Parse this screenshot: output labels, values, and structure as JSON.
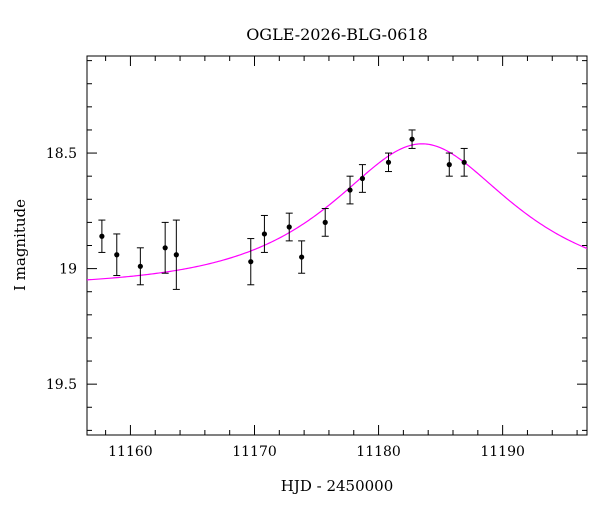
{
  "chart_data": {
    "type": "scatter",
    "title": "OGLE-2026-BLG-0618",
    "xlabel": "HJD - 2450000",
    "ylabel": "I magnitude",
    "xlim": [
      11156.5,
      11196.8
    ],
    "ylim": [
      19.72,
      18.08
    ],
    "y_inverted": true,
    "grid": false,
    "x_major_ticks": [
      11160,
      11170,
      11180,
      11190
    ],
    "x_tick_labels": [
      "11160",
      "11170",
      "11180",
      "11190"
    ],
    "y_major_ticks": [
      18.5,
      19,
      19.5
    ],
    "y_tick_labels": [
      "18.5",
      "19",
      "19.5"
    ],
    "colors": {
      "data": "#000000",
      "model": "#ff00ff",
      "frame": "#000000"
    },
    "series": [
      {
        "kind": "points_with_errorbars",
        "x": [
          11157.7,
          11158.9,
          11160.8,
          11162.8,
          11163.7,
          11169.7,
          11170.8,
          11172.8,
          11173.8,
          11175.7,
          11177.7,
          11178.7,
          11180.8,
          11182.7,
          11185.7,
          11186.9
        ],
        "y": [
          18.86,
          18.94,
          18.99,
          18.91,
          18.94,
          18.97,
          18.85,
          18.82,
          18.95,
          18.8,
          18.66,
          18.61,
          18.54,
          18.44,
          18.55,
          18.54
        ],
        "yerr": [
          0.07,
          0.09,
          0.08,
          0.11,
          0.15,
          0.1,
          0.08,
          0.06,
          0.07,
          0.06,
          0.06,
          0.06,
          0.04,
          0.04,
          0.05,
          0.06
        ]
      },
      {
        "kind": "model_curve",
        "model": "paczynski_microlensing",
        "t0": 11183.5,
        "baseline_mag": 19.08,
        "peak_mag": 18.46,
        "tE": 11
      }
    ]
  }
}
